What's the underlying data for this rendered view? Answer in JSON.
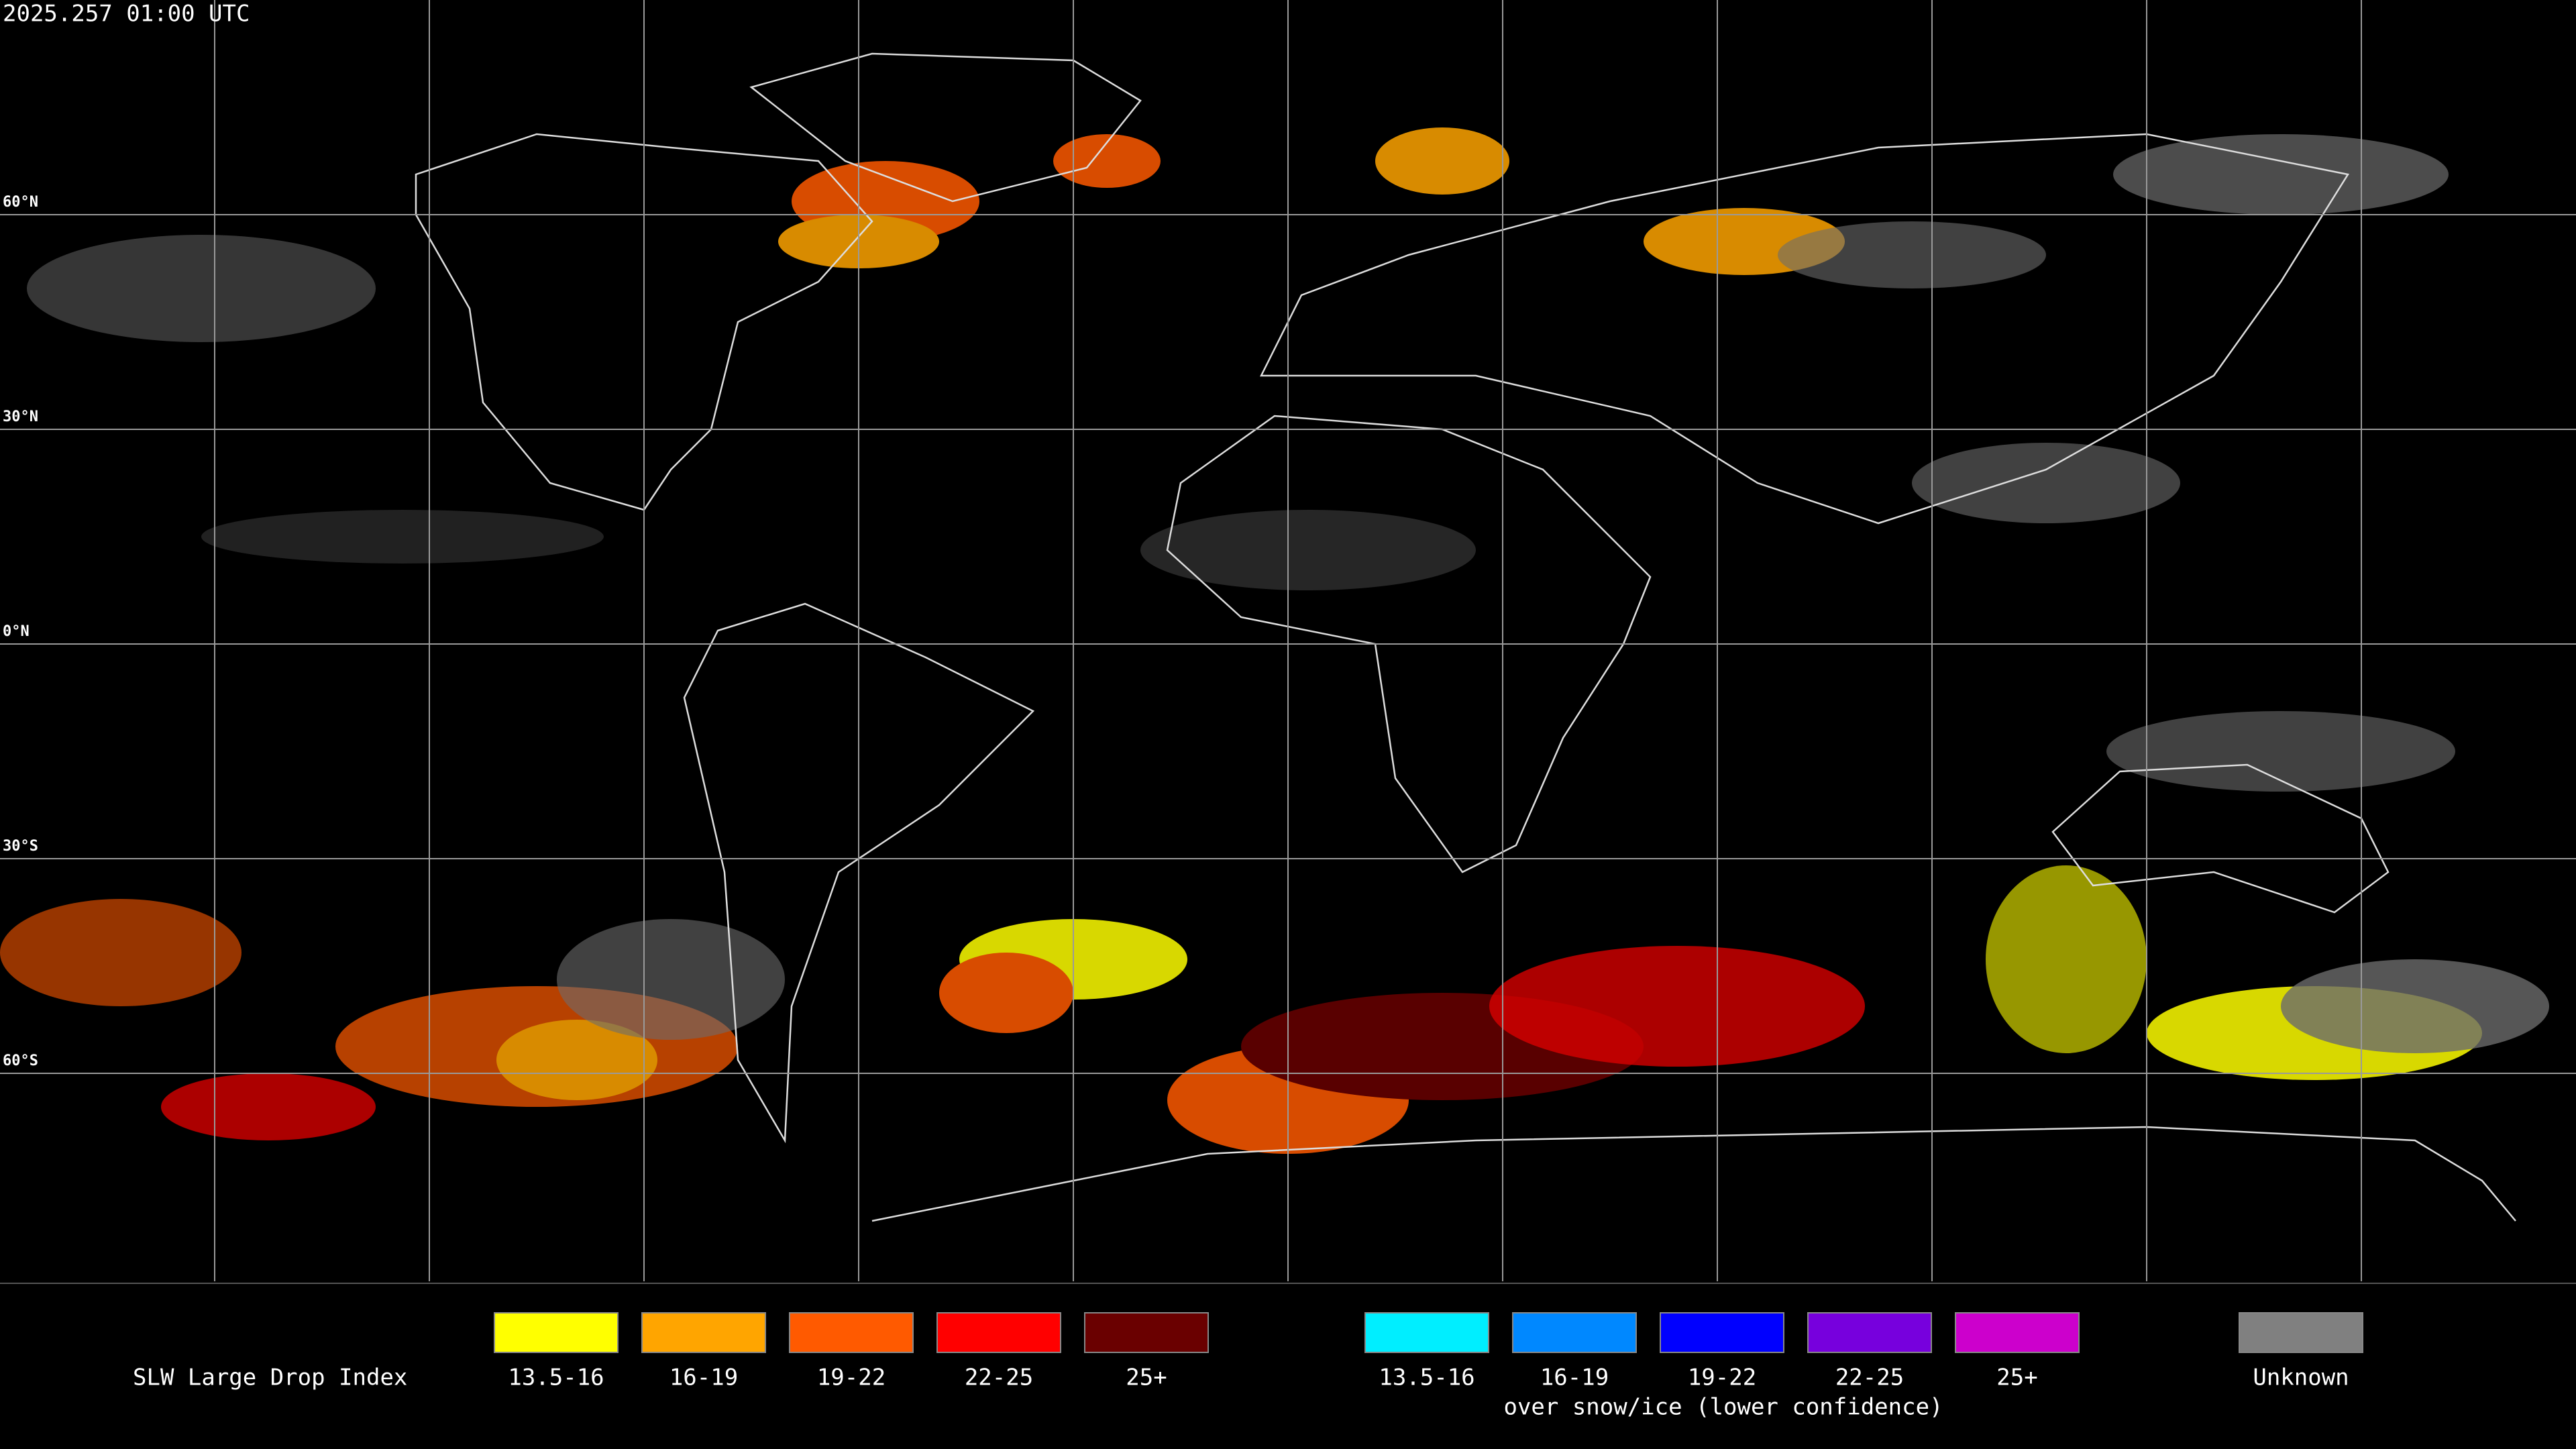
{
  "header": {
    "timestamp": "2025.257 01:00 UTC"
  },
  "latitude_labels": [
    "60°N",
    "30°N",
    "0°N",
    "30°S",
    "60°S"
  ],
  "legend": {
    "title": "SLW Large Drop Index",
    "items": [
      {
        "label": "13.5-16",
        "color": "#ffff00"
      },
      {
        "label": "16-19",
        "color": "#ffa500"
      },
      {
        "label": "19-22",
        "color": "#ff5a00"
      },
      {
        "label": "22-25",
        "color": "#ff0000"
      },
      {
        "label": "25+",
        "color": "#6a0000"
      }
    ],
    "snow_items": [
      {
        "label": "13.5-16",
        "color": "#00eeff"
      },
      {
        "label": "16-19",
        "color": "#0088ff"
      },
      {
        "label": "19-22",
        "color": "#0000ff"
      },
      {
        "label": "22-25",
        "color": "#7700dd"
      },
      {
        "label": "25+",
        "color": "#cc00cc"
      }
    ],
    "snow_caption": "over snow/ice (lower confidence)",
    "unknown": {
      "label": "Unknown",
      "color": "#808080"
    }
  }
}
